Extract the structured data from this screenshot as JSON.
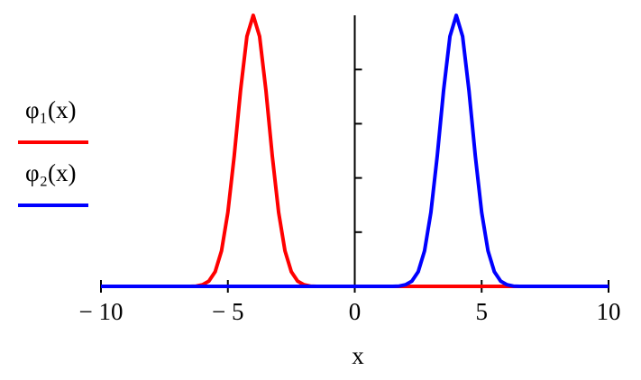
{
  "chart_data": {
    "type": "line",
    "x": [
      -10,
      -9.75,
      -9.5,
      -9.25,
      -9,
      -8.75,
      -8.5,
      -8.25,
      -8,
      -7.75,
      -7.5,
      -7.25,
      -7,
      -6.75,
      -6.5,
      -6.25,
      -6,
      -5.75,
      -5.5,
      -5.25,
      -5,
      -4.75,
      -4.5,
      -4.25,
      -4,
      -3.75,
      -3.5,
      -3.25,
      -3,
      -2.75,
      -2.5,
      -2.25,
      -2,
      -1.75,
      -1.5,
      -1.25,
      -1,
      -0.75,
      -0.5,
      -0.25,
      0,
      0.25,
      0.5,
      0.75,
      1,
      1.25,
      1.5,
      1.75,
      2,
      2.25,
      2.5,
      2.75,
      3,
      3.25,
      3.5,
      3.75,
      4,
      4.25,
      4.5,
      4.75,
      5,
      5.25,
      5.5,
      5.75,
      6,
      6.25,
      6.5,
      6.75,
      7,
      7.25,
      7.5,
      7.75,
      8,
      8.25,
      8.5,
      8.75,
      9,
      9.25,
      9.5,
      9.75,
      10
    ],
    "series": [
      {
        "name": "φ₁(x)",
        "color": "#ff0000",
        "values": [
          0,
          0,
          0,
          0,
          0,
          0,
          0,
          0,
          0,
          0,
          0,
          0,
          0,
          0,
          0,
          0.001,
          0.006,
          0.019,
          0.054,
          0.131,
          0.273,
          0.481,
          0.723,
          0.922,
          1,
          0.922,
          0.723,
          0.481,
          0.273,
          0.131,
          0.054,
          0.019,
          0.006,
          0.001,
          0,
          0,
          0,
          0,
          0,
          0,
          0,
          0,
          0,
          0,
          0,
          0,
          0,
          0,
          0,
          0,
          0,
          0,
          0,
          0,
          0,
          0,
          0,
          0,
          0,
          0,
          0,
          0,
          0,
          0,
          0,
          0,
          0,
          0,
          0,
          0,
          0,
          0,
          0,
          0,
          0,
          0,
          0,
          0,
          0,
          0,
          0
        ]
      },
      {
        "name": "φ₂(x)",
        "color": "#0000ff",
        "values": [
          0,
          0,
          0,
          0,
          0,
          0,
          0,
          0,
          0,
          0,
          0,
          0,
          0,
          0,
          0,
          0,
          0,
          0,
          0,
          0,
          0,
          0,
          0,
          0,
          0,
          0,
          0,
          0,
          0,
          0,
          0,
          0,
          0,
          0,
          0,
          0,
          0,
          0,
          0,
          0,
          0,
          0,
          0,
          0,
          0,
          0,
          0,
          0.001,
          0.006,
          0.019,
          0.054,
          0.131,
          0.273,
          0.481,
          0.723,
          0.922,
          1,
          0.922,
          0.723,
          0.481,
          0.273,
          0.131,
          0.054,
          0.019,
          0.006,
          0.001,
          0,
          0,
          0,
          0,
          0,
          0,
          0,
          0,
          0,
          0,
          0,
          0,
          0,
          0,
          0
        ]
      }
    ],
    "x_label": "x",
    "xlim": [
      -10,
      10
    ],
    "xticks": [
      {
        "value": -10,
        "label": "− 10"
      },
      {
        "value": -5,
        "label": "− 5"
      },
      0,
      5,
      10
    ],
    "ylim": [
      0,
      1
    ],
    "yticks": [
      0.2,
      0.4,
      0.6,
      0.8
    ],
    "legend": "left"
  }
}
